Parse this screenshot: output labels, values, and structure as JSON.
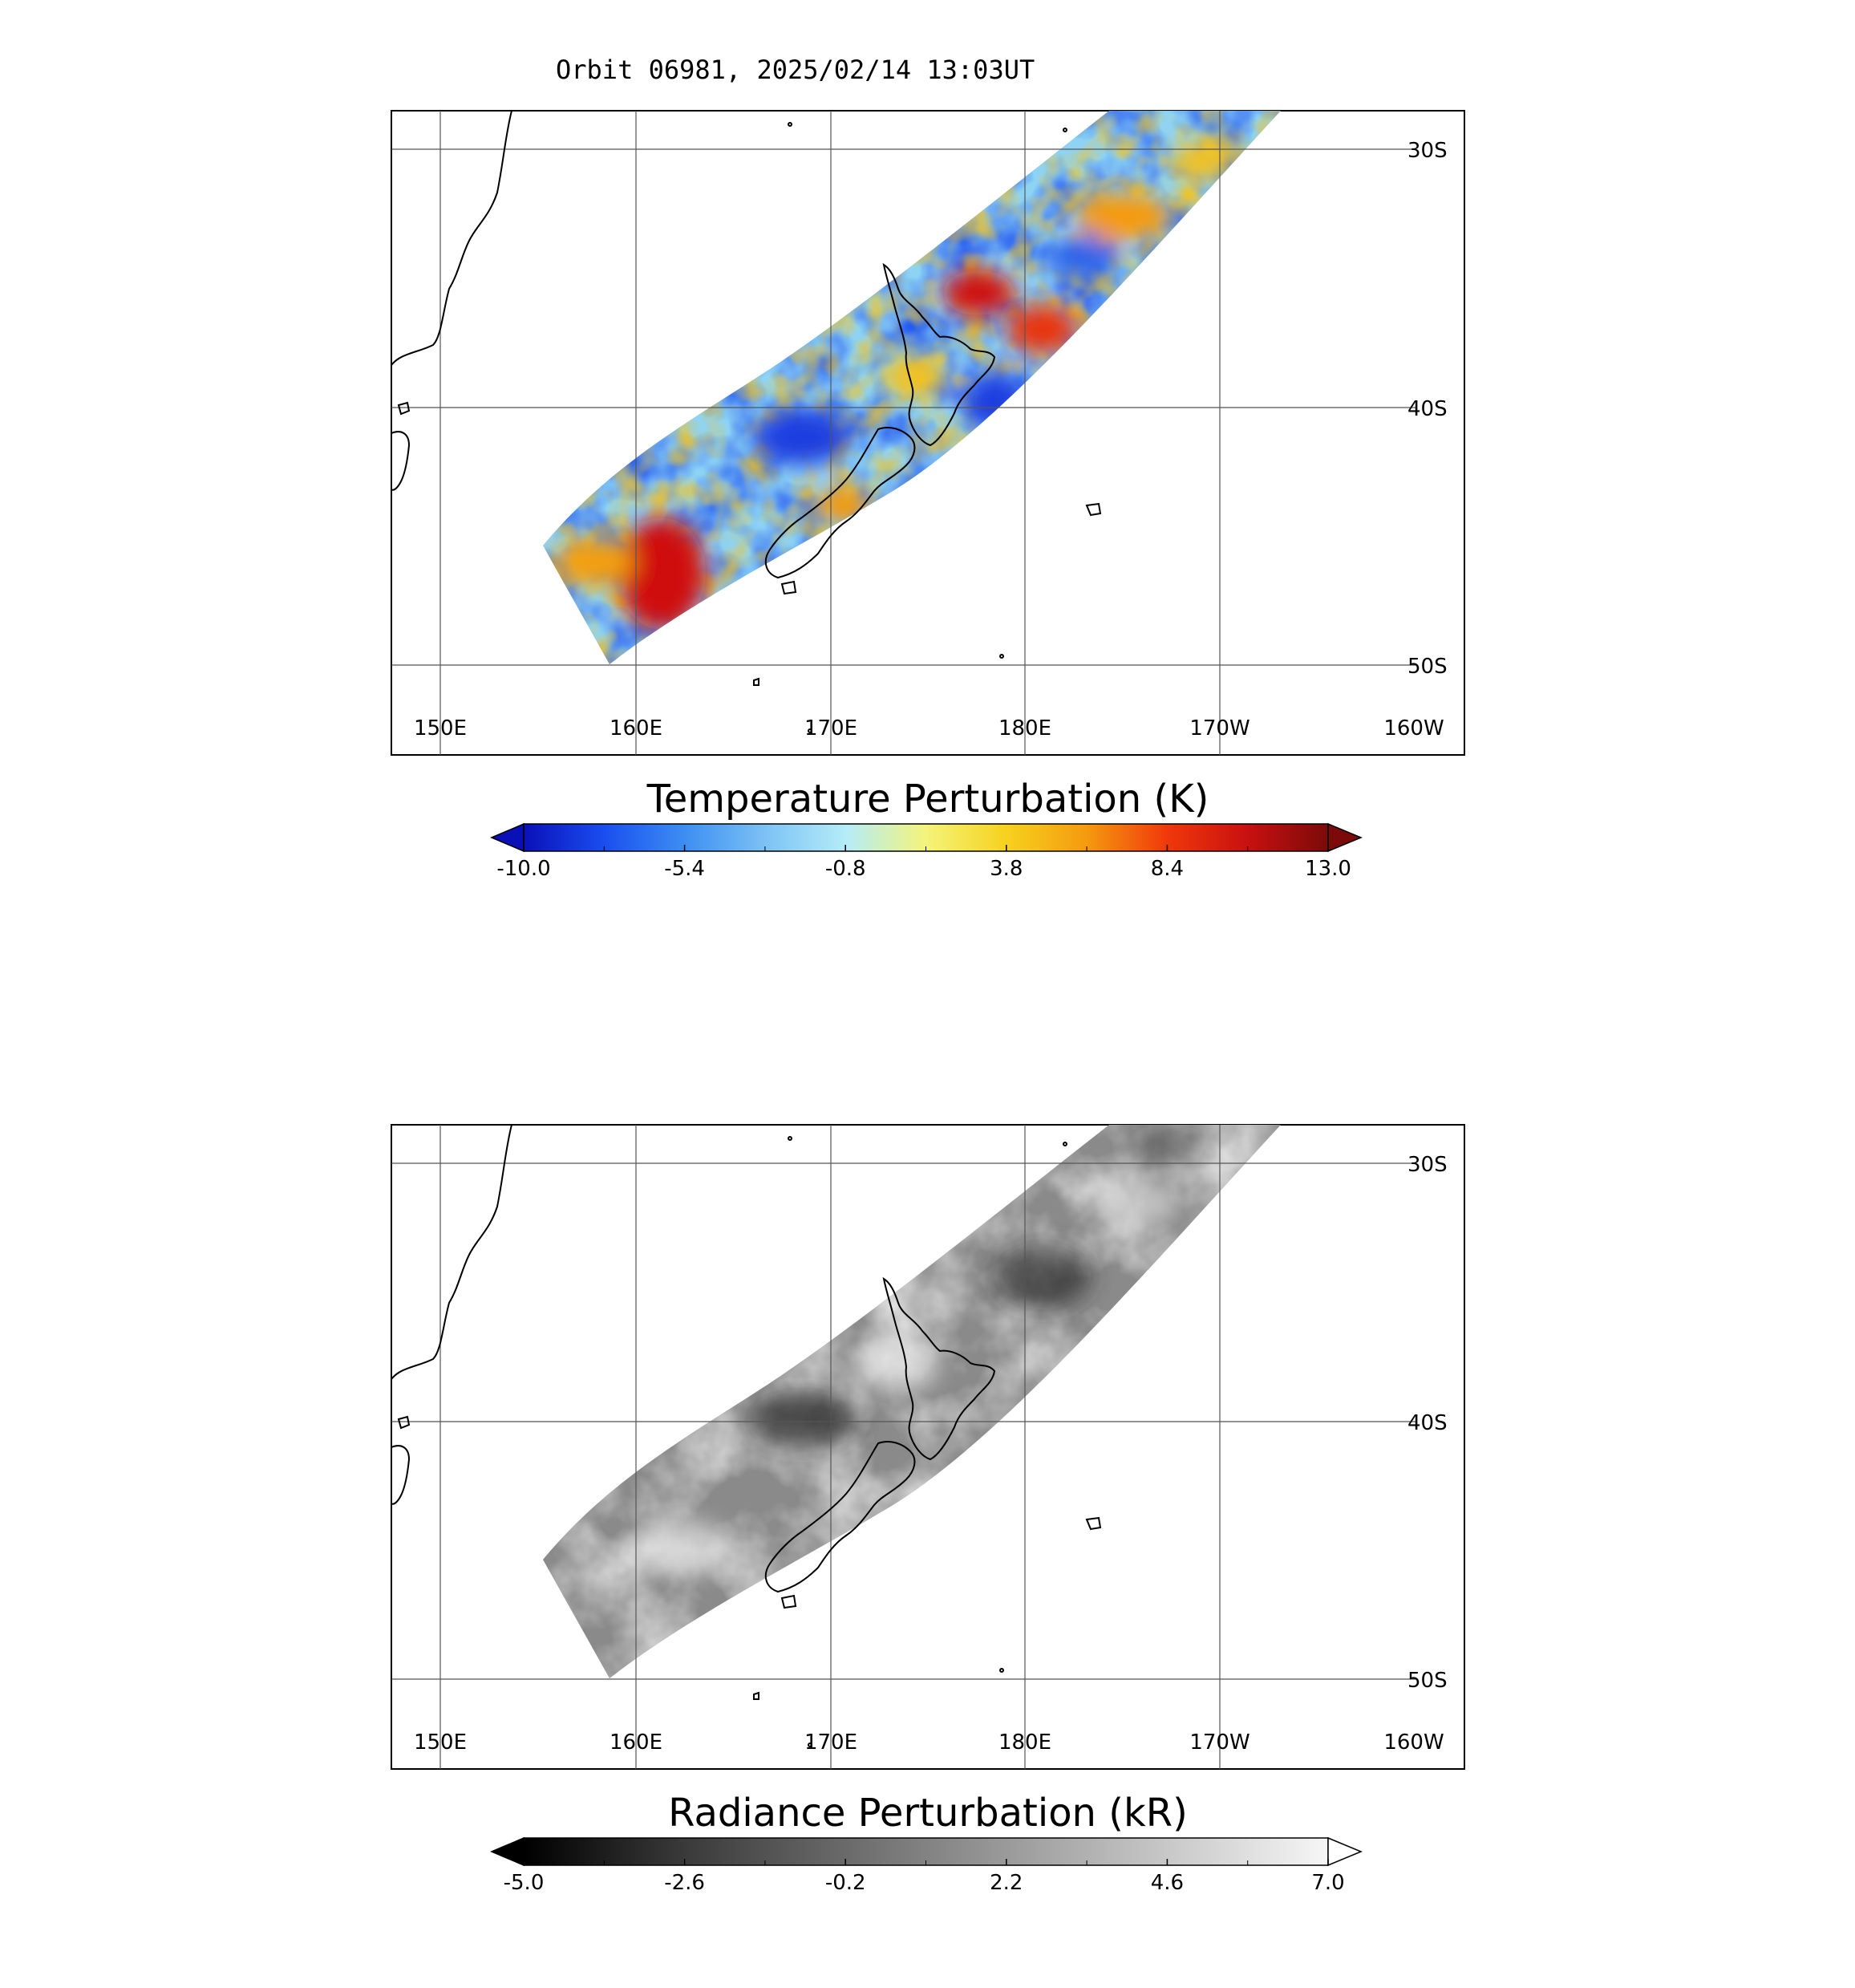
{
  "header": {
    "orbit_title": "Orbit 06981, 2025/02/14 13:03UT"
  },
  "map": {
    "lon_ticks": [
      "150E",
      "160E",
      "170E",
      "180E",
      "170W",
      "160W"
    ],
    "lat_ticks": [
      "30S",
      "40S",
      "50S"
    ]
  },
  "panels": [
    {
      "id": "temperature",
      "colorbar_title": "Temperature Perturbation (K)",
      "colorbar_ticks": [
        "-10.0",
        "-5.4",
        "-0.8",
        "3.8",
        "8.4",
        "13.0"
      ],
      "colormap": [
        "#0a10b8",
        "#1a4ef0",
        "#3c8ef2",
        "#7cc2f5",
        "#b4ecf8",
        "#f4f47a",
        "#f6d21e",
        "#f59a0e",
        "#f0380c",
        "#c81010",
        "#7c0a0a"
      ],
      "under_color": "#0a10b8",
      "over_color": "#7c0a0a"
    },
    {
      "id": "radiance",
      "colorbar_title": "Radiance Perturbation (kR)",
      "colorbar_ticks": [
        "-5.0",
        "-2.6",
        "-0.2",
        "2.2",
        "4.6",
        "7.0"
      ],
      "colormap": [
        "#000000",
        "#3a3a3a",
        "#6a6a6a",
        "#9a9a9a",
        "#c8c8c8",
        "#f6f6f6"
      ],
      "under_color": "#000000",
      "over_color": "#ffffff"
    }
  ]
}
